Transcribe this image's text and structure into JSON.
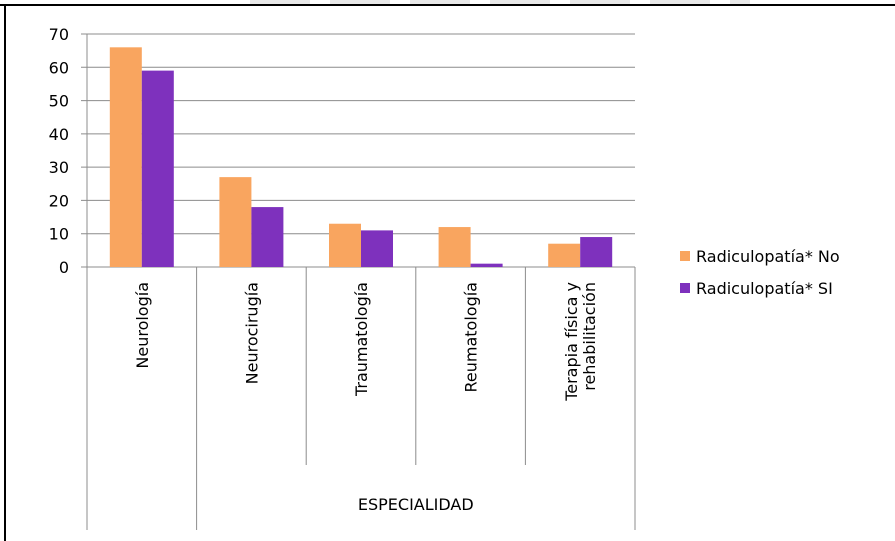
{
  "chart_data": {
    "type": "bar",
    "categories": [
      "Neurología",
      "Neurocirugía",
      "Traumatología",
      "Reumatología",
      "Terapia física y rehabilitación"
    ],
    "category_lines": [
      [
        "Neurología"
      ],
      [
        "Neurocirugía"
      ],
      [
        "Traumatología"
      ],
      [
        "Reumatología"
      ],
      [
        "Terapia física y",
        "rehabilitación"
      ]
    ],
    "series": [
      {
        "name": "Radiculopatía* No",
        "color": "#F9A55F",
        "values": [
          66,
          27,
          13,
          12,
          7
        ]
      },
      {
        "name": "Radiculopatía* SI",
        "color": "#7E31BD",
        "values": [
          59,
          18,
          11,
          1,
          9
        ]
      }
    ],
    "xlabel": "ESPECIALIDAD",
    "ylabel": "",
    "ylim": [
      0,
      70
    ],
    "yticks": [
      0,
      10,
      20,
      30,
      40,
      50,
      60,
      70
    ],
    "grid": true,
    "legend": "right"
  }
}
